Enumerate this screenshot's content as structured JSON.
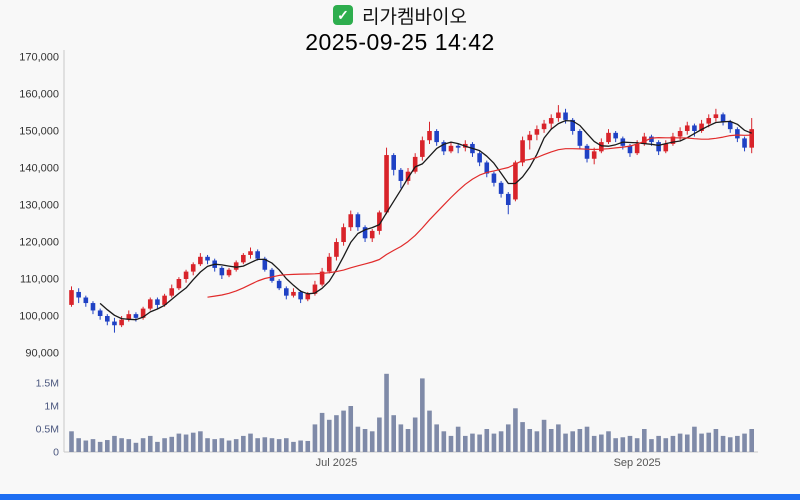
{
  "title": {
    "check_glyph": "✓",
    "name": "리가켐바이오",
    "datetime": "2025-09-25 14:42"
  },
  "colors": {
    "background": "#f8f8f8",
    "check_green": "#2eae4e",
    "accent_bar": "#1d6ef2",
    "axis_line": "#c9c9c9",
    "price_tick_text": "#333333",
    "volume_tick_text": "#4a567e",
    "x_tick_text": "#555555"
  },
  "chart_data": {
    "type": "candlestick",
    "title": "리가켐바이오",
    "timestamp": "2025-09-25 14:42",
    "units": {
      "price": "thousand KRW",
      "volume": "million shares"
    },
    "up_color": "#d8232a",
    "down_color": "#1f41c4",
    "volume_bar_color": "#7f8aa8",
    "price_axis": {
      "min": 90,
      "max": 170,
      "ticks": [
        {
          "label": "170,000",
          "value": 170
        },
        {
          "label": "160,000",
          "value": 160
        },
        {
          "label": "150,000",
          "value": 150
        },
        {
          "label": "140,000",
          "value": 140
        },
        {
          "label": "130,000",
          "value": 130
        },
        {
          "label": "120,000",
          "value": 120
        },
        {
          "label": "110,000",
          "value": 110
        },
        {
          "label": "100,000",
          "value": 100
        },
        {
          "label": "90,000",
          "value": 90
        }
      ]
    },
    "volume_axis": {
      "max": 1.75,
      "ticks": [
        {
          "label": "1.5M",
          "value": 1.5
        },
        {
          "label": "1M",
          "value": 1.0
        },
        {
          "label": "0.5M",
          "value": 0.5
        },
        {
          "label": "0",
          "value": 0
        }
      ]
    },
    "x_axis": {
      "ticks": [
        {
          "label": "Jul 2025",
          "index": 37
        },
        {
          "label": "Sep 2025",
          "index": 79
        }
      ]
    },
    "moving_averages": [
      {
        "period": 5,
        "color": "#1a1a1a",
        "width": 1.3
      },
      {
        "period": 20,
        "color": "#e12b2b",
        "width": 1.2
      }
    ],
    "candles": [
      [
        103.0,
        108.0,
        102.5,
        107.0,
        0.45
      ],
      [
        106.5,
        107.5,
        103.5,
        105.0,
        0.3
      ],
      [
        105.0,
        105.5,
        102.5,
        103.5,
        0.25
      ],
      [
        103.5,
        104.0,
        100.5,
        101.5,
        0.28
      ],
      [
        101.5,
        102.0,
        99.0,
        100.0,
        0.22
      ],
      [
        100.0,
        100.5,
        97.5,
        98.5,
        0.26
      ],
      [
        98.5,
        99.5,
        95.5,
        97.5,
        0.35
      ],
      [
        97.5,
        100.0,
        97.0,
        99.0,
        0.3
      ],
      [
        99.0,
        101.5,
        98.5,
        100.5,
        0.28
      ],
      [
        100.5,
        101.0,
        98.5,
        99.5,
        0.2
      ],
      [
        99.5,
        102.5,
        99.0,
        102.0,
        0.3
      ],
      [
        102.0,
        105.0,
        101.5,
        104.5,
        0.35
      ],
      [
        104.5,
        105.0,
        102.0,
        103.0,
        0.22
      ],
      [
        103.0,
        106.0,
        102.5,
        105.5,
        0.3
      ],
      [
        105.5,
        108.5,
        105.0,
        107.5,
        0.33
      ],
      [
        107.5,
        110.5,
        107.0,
        110.0,
        0.4
      ],
      [
        110.0,
        112.5,
        109.0,
        112.0,
        0.38
      ],
      [
        112.0,
        114.5,
        111.0,
        114.0,
        0.42
      ],
      [
        114.0,
        117.0,
        113.5,
        116.0,
        0.45
      ],
      [
        116.0,
        116.5,
        114.0,
        115.0,
        0.3
      ],
      [
        115.0,
        115.5,
        112.0,
        113.0,
        0.28
      ],
      [
        113.0,
        113.5,
        110.0,
        111.0,
        0.3
      ],
      [
        111.0,
        113.0,
        110.5,
        112.5,
        0.25
      ],
      [
        112.5,
        115.0,
        112.0,
        114.5,
        0.28
      ],
      [
        114.5,
        117.0,
        114.0,
        116.5,
        0.35
      ],
      [
        116.5,
        118.5,
        115.5,
        117.5,
        0.4
      ],
      [
        117.5,
        118.0,
        115.0,
        115.5,
        0.3
      ],
      [
        115.5,
        116.0,
        112.0,
        112.5,
        0.32
      ],
      [
        112.5,
        113.0,
        109.0,
        109.5,
        0.3
      ],
      [
        109.5,
        110.0,
        107.0,
        107.5,
        0.28
      ],
      [
        107.5,
        108.0,
        104.5,
        105.5,
        0.3
      ],
      [
        105.5,
        107.5,
        105.0,
        106.5,
        0.22
      ],
      [
        106.5,
        107.0,
        103.5,
        104.5,
        0.25
      ],
      [
        104.5,
        106.5,
        104.0,
        106.0,
        0.24
      ],
      [
        106.0,
        109.5,
        105.5,
        108.5,
        0.6
      ],
      [
        108.5,
        113.0,
        108.0,
        112.0,
        0.85
      ],
      [
        112.0,
        117.0,
        111.5,
        116.0,
        0.7
      ],
      [
        116.0,
        121.0,
        115.0,
        120.0,
        0.8
      ],
      [
        120.0,
        125.0,
        119.0,
        124.0,
        0.9
      ],
      [
        124.0,
        128.5,
        123.0,
        127.5,
        1.0
      ],
      [
        127.5,
        128.0,
        123.0,
        124.0,
        0.55
      ],
      [
        124.0,
        124.5,
        120.0,
        121.0,
        0.5
      ],
      [
        121.0,
        123.5,
        120.0,
        123.0,
        0.45
      ],
      [
        123.0,
        128.5,
        122.0,
        128.0,
        0.75
      ],
      [
        128.0,
        145.5,
        127.5,
        143.5,
        1.7
      ],
      [
        143.5,
        144.0,
        138.0,
        139.5,
        0.8
      ],
      [
        139.5,
        140.0,
        134.5,
        136.5,
        0.6
      ],
      [
        136.5,
        140.0,
        135.5,
        139.0,
        0.5
      ],
      [
        139.0,
        144.0,
        138.5,
        143.0,
        0.75
      ],
      [
        143.0,
        148.5,
        142.0,
        147.5,
        1.6
      ],
      [
        147.5,
        152.5,
        146.5,
        150.0,
        0.9
      ],
      [
        150.0,
        150.5,
        146.0,
        147.0,
        0.6
      ],
      [
        147.0,
        147.5,
        143.5,
        144.5,
        0.45
      ],
      [
        144.5,
        147.0,
        144.0,
        146.0,
        0.35
      ],
      [
        146.0,
        146.5,
        144.0,
        145.5,
        0.55
      ],
      [
        145.5,
        147.5,
        144.5,
        146.5,
        0.35
      ],
      [
        146.5,
        147.0,
        143.0,
        144.0,
        0.4
      ],
      [
        144.0,
        144.5,
        140.5,
        141.5,
        0.38
      ],
      [
        141.5,
        142.0,
        137.5,
        138.5,
        0.5
      ],
      [
        138.5,
        139.0,
        135.0,
        136.0,
        0.4
      ],
      [
        136.0,
        136.5,
        132.0,
        133.0,
        0.45
      ],
      [
        133.0,
        133.5,
        127.5,
        130.0,
        0.6
      ],
      [
        131.5,
        142.0,
        131.0,
        141.5,
        0.95
      ],
      [
        141.5,
        148.5,
        140.5,
        147.5,
        0.65
      ],
      [
        147.5,
        150.0,
        145.0,
        149.0,
        0.5
      ],
      [
        149.0,
        151.5,
        147.5,
        150.5,
        0.45
      ],
      [
        150.5,
        153.0,
        149.5,
        152.0,
        0.7
      ],
      [
        152.0,
        154.5,
        150.5,
        153.5,
        0.5
      ],
      [
        153.5,
        157.0,
        152.5,
        155.0,
        0.6
      ],
      [
        155.0,
        156.0,
        152.0,
        153.0,
        0.4
      ],
      [
        153.0,
        153.5,
        149.0,
        150.0,
        0.45
      ],
      [
        150.0,
        150.5,
        145.0,
        146.0,
        0.5
      ],
      [
        146.0,
        146.5,
        141.5,
        142.5,
        0.55
      ],
      [
        142.5,
        145.5,
        141.0,
        144.5,
        0.35
      ],
      [
        144.5,
        148.0,
        144.0,
        147.0,
        0.38
      ],
      [
        147.0,
        150.5,
        146.5,
        149.5,
        0.45
      ],
      [
        149.5,
        150.0,
        147.0,
        148.0,
        0.3
      ],
      [
        148.0,
        148.5,
        145.0,
        146.0,
        0.32
      ],
      [
        146.0,
        146.5,
        143.0,
        144.0,
        0.35
      ],
      [
        144.0,
        147.5,
        143.5,
        146.5,
        0.3
      ],
      [
        146.5,
        149.5,
        146.0,
        148.5,
        0.5
      ],
      [
        148.5,
        149.0,
        146.0,
        147.0,
        0.28
      ],
      [
        147.0,
        147.5,
        143.5,
        144.5,
        0.35
      ],
      [
        144.5,
        147.5,
        144.0,
        146.5,
        0.3
      ],
      [
        146.5,
        149.5,
        146.0,
        148.5,
        0.35
      ],
      [
        148.5,
        151.0,
        147.5,
        150.0,
        0.4
      ],
      [
        150.0,
        152.5,
        149.0,
        151.5,
        0.38
      ],
      [
        151.5,
        152.0,
        148.5,
        150.0,
        0.55
      ],
      [
        150.0,
        153.0,
        149.5,
        152.0,
        0.4
      ],
      [
        152.0,
        154.5,
        151.0,
        153.5,
        0.42
      ],
      [
        153.5,
        156.0,
        152.5,
        154.5,
        0.5
      ],
      [
        154.5,
        155.0,
        151.5,
        152.5,
        0.35
      ],
      [
        152.5,
        153.0,
        149.5,
        150.5,
        0.32
      ],
      [
        150.5,
        151.0,
        147.0,
        148.0,
        0.35
      ],
      [
        148.0,
        148.5,
        144.5,
        145.5,
        0.4
      ],
      [
        145.5,
        153.5,
        144.0,
        150.5,
        0.5
      ]
    ]
  }
}
